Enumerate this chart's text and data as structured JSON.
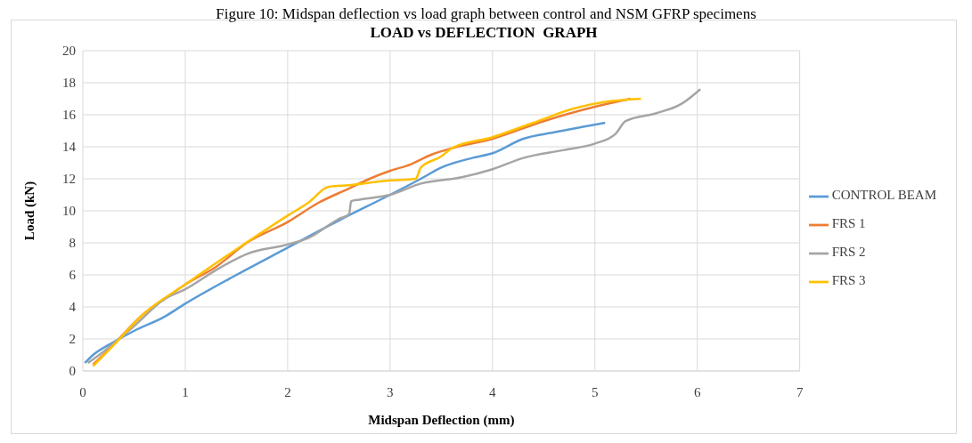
{
  "chart_data": {
    "type": "line",
    "title": "LOAD vs DEFLECTION  GRAPH",
    "xlabel": "Midspan Deflection (mm)",
    "ylabel": "Load (kN)",
    "annotations": [
      "Figure 10: Midspan deflection vs load graph between control and NSM GFRP specimens"
    ],
    "xlim": [
      0,
      7
    ],
    "xticks": [
      0,
      1,
      2,
      3,
      4,
      5,
      6,
      7
    ],
    "ylim": [
      0,
      20
    ],
    "yticks": [
      0,
      2,
      4,
      6,
      8,
      10,
      12,
      14,
      16,
      18,
      20
    ],
    "grid": true,
    "legend": "right",
    "marker": "none",
    "line_style": "solid",
    "series": [
      {
        "name": "CONTROL BEAM",
        "color": "#5b9bd5",
        "x": [
          0.02,
          0.1,
          0.3,
          0.5,
          0.8,
          1,
          1.5,
          2,
          2.5,
          3,
          3.3,
          3.5,
          3.8,
          4,
          4.3,
          4.6,
          5.1
        ],
        "values": [
          0.5,
          1.0,
          1.8,
          2.5,
          3.4,
          4.2,
          6,
          7.7,
          9.4,
          11,
          12,
          12.7,
          13.3,
          13.6,
          14.5,
          14.9,
          15.5
        ]
      },
      {
        "name": "FRS 1",
        "color": "#ed7d31",
        "x": [
          0.1,
          0.2,
          0.35,
          0.6,
          0.8,
          1,
          1.3,
          1.6,
          2,
          2.3,
          2.6,
          2.8,
          3,
          3.2,
          3.4,
          3.6,
          4,
          4.5,
          5,
          5.35
        ],
        "values": [
          0.4,
          1.0,
          2,
          3.6,
          4.5,
          5.4,
          6.5,
          8,
          9.3,
          10.5,
          11.4,
          12,
          12.5,
          12.9,
          13.5,
          13.9,
          14.5,
          15.6,
          16.5,
          17
        ]
      },
      {
        "name": "FRS 2",
        "color": "#a5a5a5",
        "x": [
          0.05,
          0.2,
          0.5,
          0.8,
          1,
          1.3,
          1.6,
          2,
          2.2,
          2.5,
          2.6,
          2.62,
          2.7,
          3,
          3.3,
          3.7,
          4,
          4.3,
          4.7,
          5,
          5.2,
          5.3,
          5.6,
          5.85,
          6.03
        ],
        "values": [
          0.5,
          1.2,
          2.8,
          4.5,
          5.1,
          6.3,
          7.3,
          7.9,
          8.3,
          9.5,
          9.8,
          10.6,
          10.7,
          11,
          11.7,
          12.1,
          12.6,
          13.3,
          13.8,
          14.2,
          14.8,
          15.6,
          16.1,
          16.7,
          17.6
        ]
      },
      {
        "name": "FRS 3",
        "color": "#ffc000",
        "x": [
          0.1,
          0.3,
          0.6,
          1,
          1.5,
          2,
          2.2,
          2.4,
          2.6,
          3,
          3.25,
          3.3,
          3.5,
          3.6,
          4,
          4.4,
          4.8,
          5.1,
          5.45
        ],
        "values": [
          0.3,
          1.6,
          3.6,
          5.4,
          7.6,
          9.7,
          10.5,
          11.5,
          11.6,
          11.9,
          12,
          12.7,
          13.4,
          13.9,
          14.6,
          15.5,
          16.4,
          16.8,
          17
        ]
      }
    ]
  }
}
